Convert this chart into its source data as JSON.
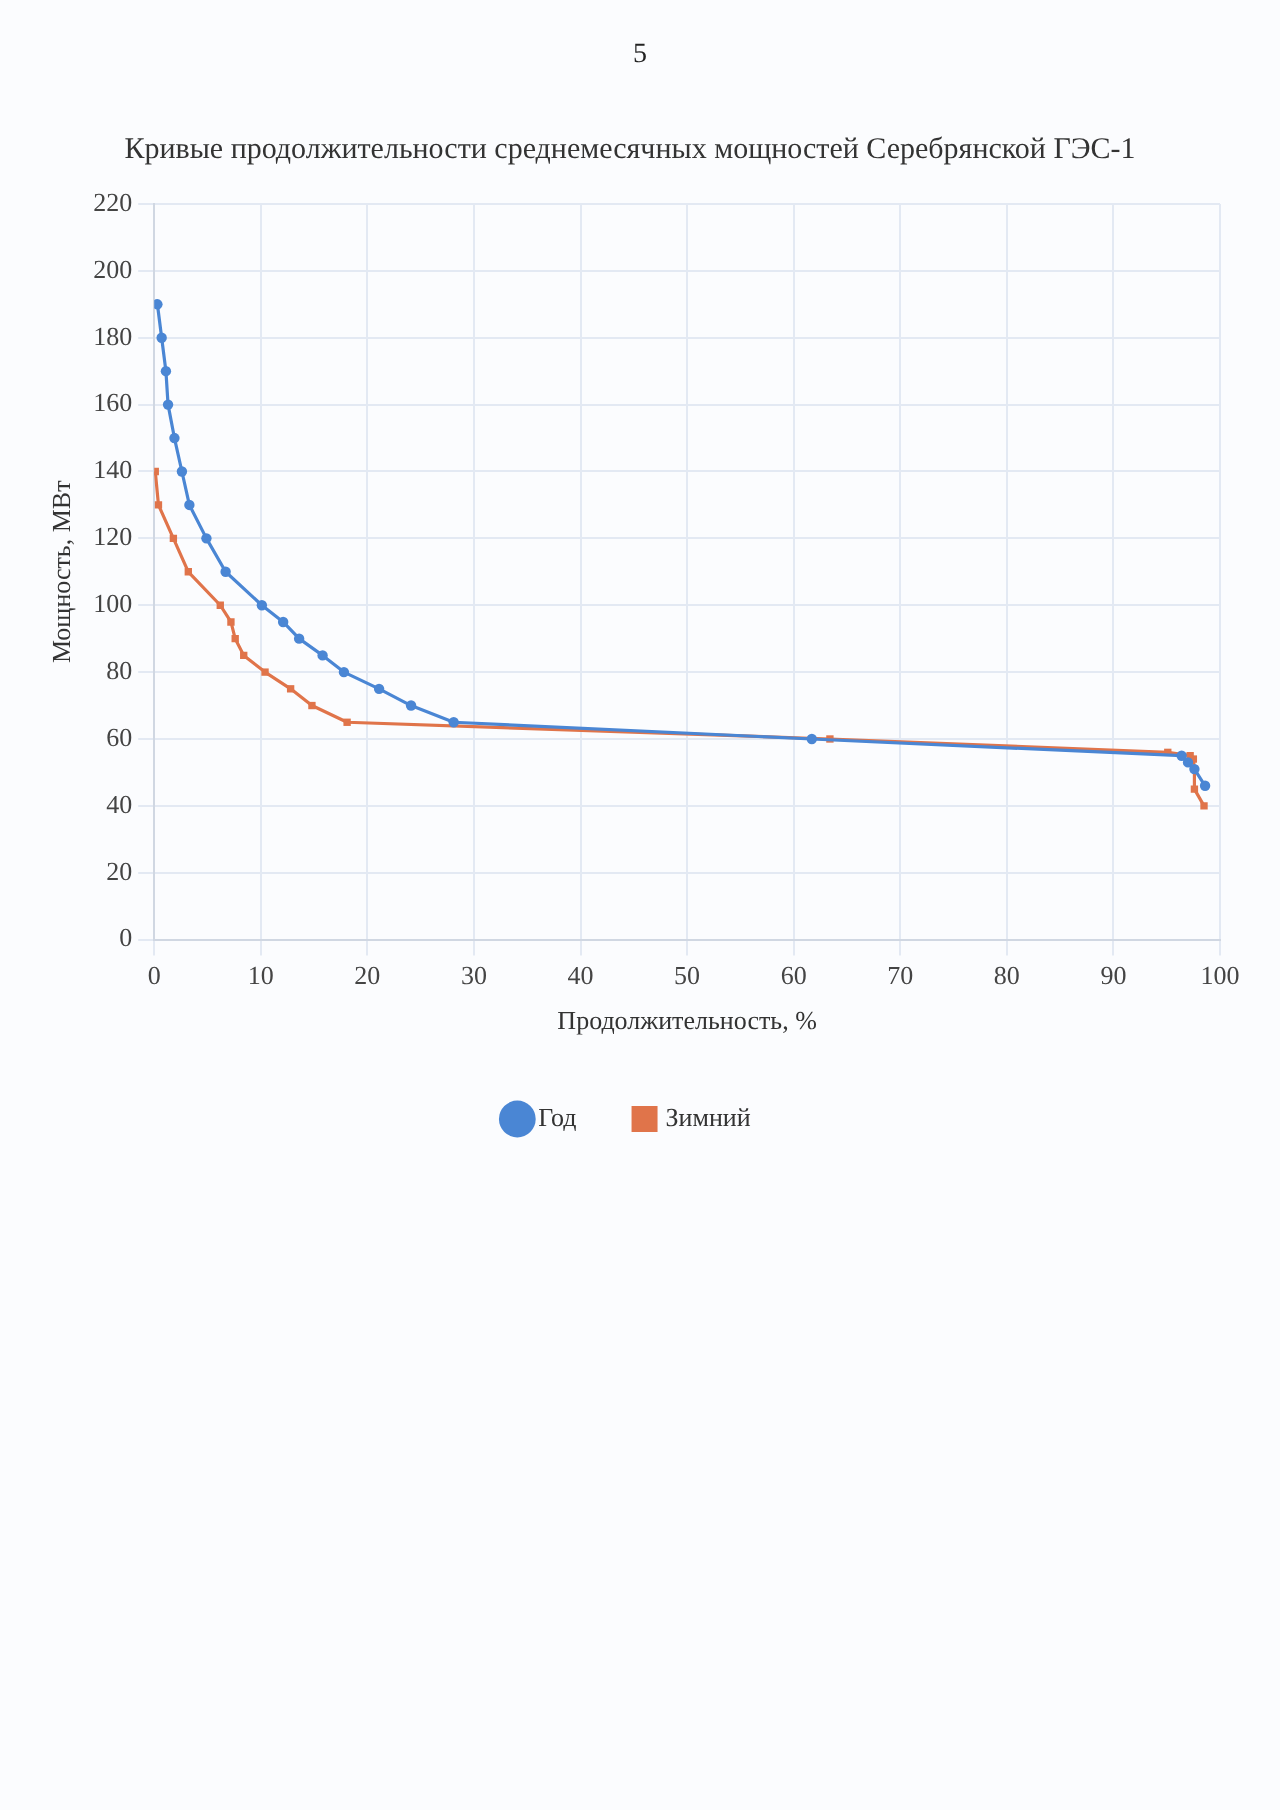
{
  "chart_data": {
    "type": "line",
    "title": "Кривые продолжительности среднемесячных мощностей Серебрянской ГЭС-1",
    "xlabel": "Продолжительность, %",
    "ylabel": "Мощность, МВт",
    "xlim": [
      0,
      100
    ],
    "xticks": [
      0,
      10,
      20,
      30,
      40,
      50,
      60,
      70,
      80,
      90,
      100
    ],
    "ylim": [
      0,
      220
    ],
    "yticks": [
      0,
      20,
      40,
      60,
      80,
      100,
      120,
      140,
      160,
      180,
      200,
      220
    ],
    "grid": true,
    "legend": "bottom",
    "series": [
      {
        "name": "Год",
        "color": "#4a86d4",
        "marker": "circle",
        "x": [
          0.3,
          0.7,
          1.1,
          1.3,
          1.9,
          2.6,
          3.3,
          4.9,
          6.7,
          10.1,
          12.1,
          13.6,
          15.8,
          17.8,
          21.1,
          24.1,
          28.1,
          61.7,
          96.4,
          97.0,
          97.6,
          98.6
        ],
        "values": [
          190,
          180,
          170,
          160,
          150,
          140,
          130,
          120,
          110,
          100,
          95,
          90,
          85,
          80,
          75,
          70,
          65,
          60,
          55,
          53,
          51,
          46
        ]
      },
      {
        "name": "Зимний",
        "color": "#e0744a",
        "marker": "square",
        "x": [
          0.1,
          0.4,
          1.8,
          3.2,
          6.2,
          7.2,
          7.6,
          8.4,
          10.4,
          12.8,
          14.8,
          18.1,
          63.4,
          95.1,
          97.2,
          97.5,
          97.6,
          97.6,
          98.5
        ],
        "values": [
          140,
          130,
          120,
          110,
          100,
          95,
          90,
          85,
          80,
          75,
          70,
          65,
          60,
          56,
          55,
          54,
          51,
          45,
          40
        ]
      }
    ],
    "annotations": [
      "5"
    ]
  }
}
